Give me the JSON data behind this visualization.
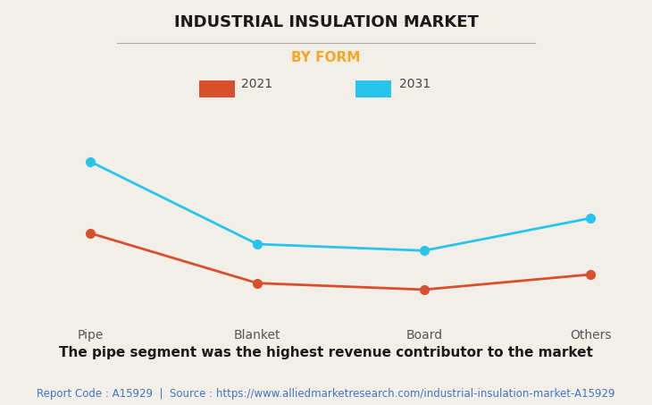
{
  "title": "INDUSTRIAL INSULATION MARKET",
  "subtitle": "BY FORM",
  "categories": [
    "Pipe",
    "Blanket",
    "Board",
    "Others"
  ],
  "series": [
    {
      "label": "2021",
      "color": "#D94F2B",
      "values": [
        5.5,
        3.2,
        2.9,
        3.6
      ]
    },
    {
      "label": "2031",
      "color": "#29C4EC",
      "values": [
        8.8,
        5.0,
        4.7,
        6.2
      ]
    }
  ],
  "ylim": [
    1.5,
    11.5
  ],
  "background_color": "#F2EFE9",
  "grid_color": "#CCCCCC",
  "title_fontsize": 13,
  "subtitle_fontsize": 11,
  "subtitle_color": "#F5A623",
  "legend_fontsize": 10,
  "tick_fontsize": 10,
  "annotation_text": "The pipe segment was the highest revenue contributor to the market",
  "footer_text": "Report Code : A15929  |  Source : https://www.alliedmarketresearch.com/industrial-insulation-market-A15929",
  "footer_color": "#4472C4",
  "annotation_fontsize": 11,
  "footer_fontsize": 8.5
}
